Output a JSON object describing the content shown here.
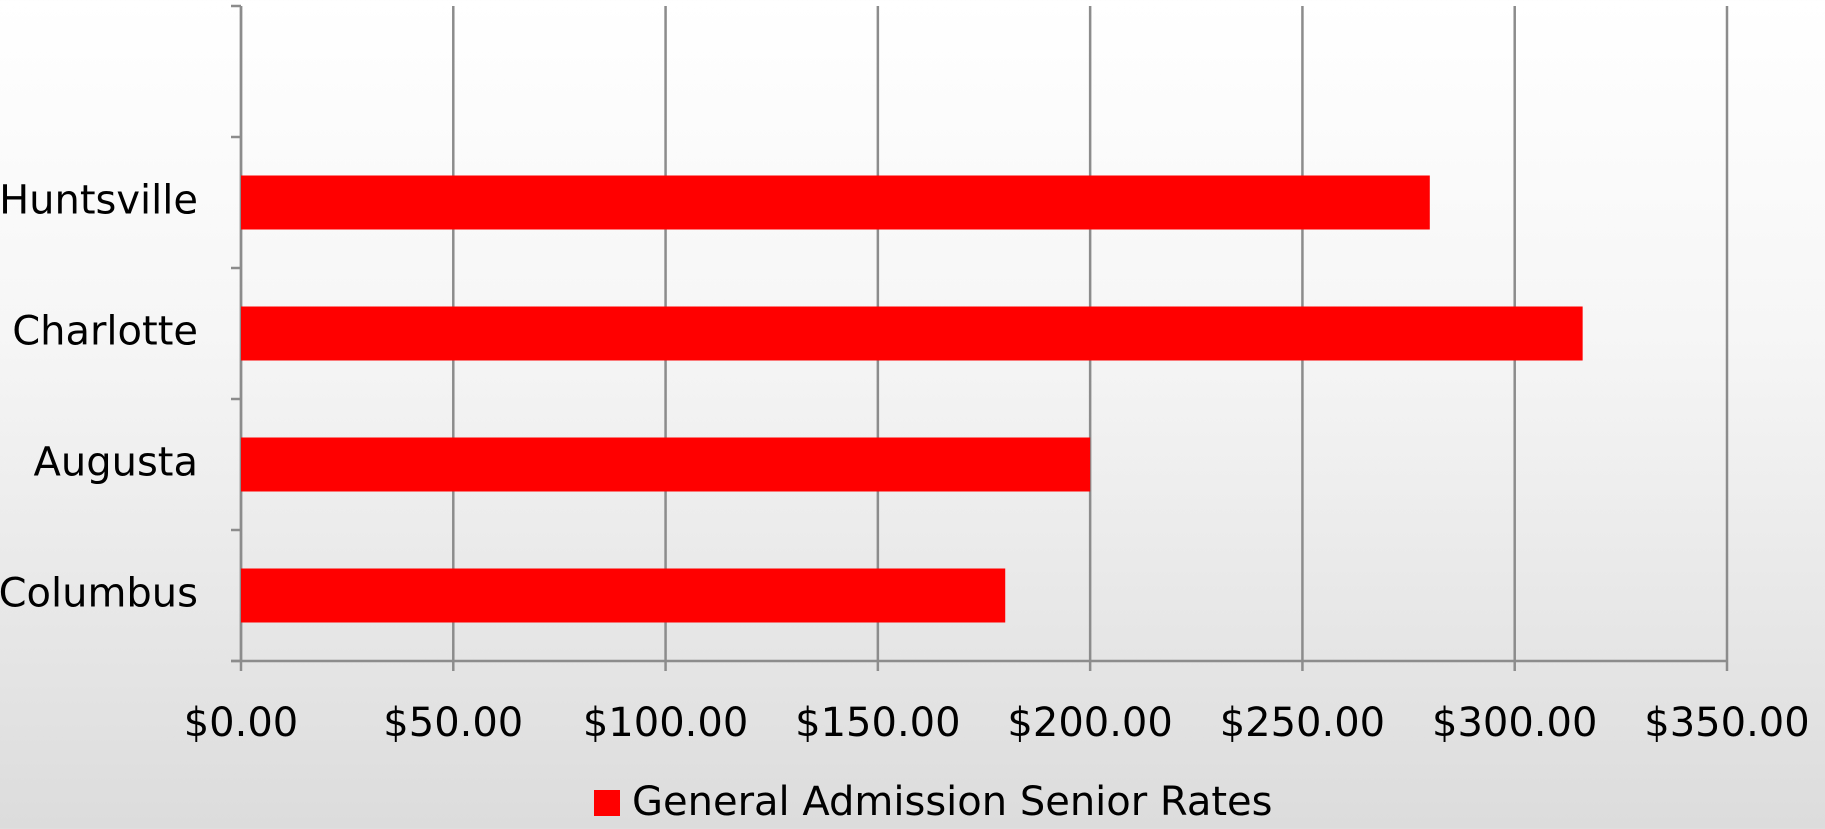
{
  "chart_data": {
    "type": "bar",
    "orientation": "horizontal",
    "categories": [
      "Columbus",
      "Augusta",
      "Charlotte",
      "Huntsville",
      null
    ],
    "series": [
      {
        "name": "General Admission Senior Rates",
        "color": "#ff0000",
        "values": [
          180,
          200,
          316,
          280,
          null
        ]
      }
    ],
    "xlim": [
      0,
      350
    ],
    "xticks": [
      {
        "value": 0,
        "label": "$0.00"
      },
      {
        "value": 50,
        "label": "$50.00"
      },
      {
        "value": 100,
        "label": "$100.00"
      },
      {
        "value": 150,
        "label": "$150.00"
      },
      {
        "value": 200,
        "label": "$200.00"
      },
      {
        "value": 250,
        "label": "$250.00"
      },
      {
        "value": 300,
        "label": "$300.00"
      },
      {
        "value": 350,
        "label": "$350.00"
      }
    ],
    "grid": true,
    "legend": "bottom"
  }
}
